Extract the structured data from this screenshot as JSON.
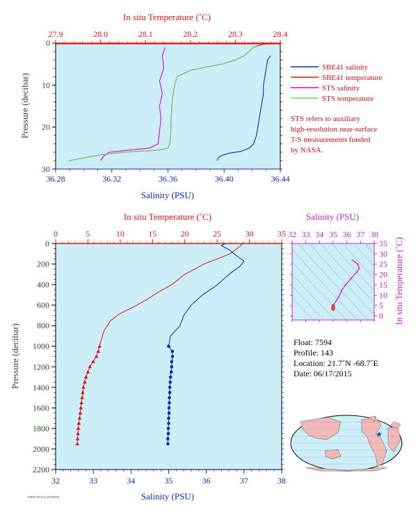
{
  "colors": {
    "salinity": "#0a28b4",
    "temperature": "#e01414",
    "sts_salinity": "#e000e0",
    "sts_temperature": "#6ad06a",
    "plot_bg": "#cceef8",
    "pressure_label": "#2a4a2a",
    "grey_text": "#333333"
  },
  "top_chart": {
    "top_axis_title": "In situ Temperature (˚C)",
    "bottom_axis_title": "Salinity (PSU)",
    "left_axis_title": "Pressure (decibar)",
    "temp_ticks": [
      "27.9",
      "28.0",
      "28.1",
      "28.2",
      "28.3",
      "28.4"
    ],
    "sal_ticks": [
      "36.28",
      "36.32",
      "36.36",
      "36.40",
      "36.44"
    ],
    "pres_ticks": [
      "0",
      "10",
      "20",
      "30"
    ],
    "legend": [
      {
        "label": "SBE41 salinity",
        "color": "#0a28b4"
      },
      {
        "label": "SBE41 temperature",
        "color": "#e01414"
      },
      {
        "label": "STS salinity",
        "color": "#e000e0"
      },
      {
        "label": "STS temperature",
        "color": "#6ad06a"
      }
    ],
    "note": [
      "STS refers to auxiliary",
      "high-resolution near-surface",
      "T-S measurements funded",
      "by NASA."
    ]
  },
  "bottom_chart": {
    "top_axis_title": "In situ Temperature (˚C)",
    "bottom_axis_title": "Salinity (PSU)",
    "left_axis_title": "Pressure (decibar)",
    "temp_ticks": [
      "0",
      "5",
      "10",
      "15",
      "20",
      "25",
      "30",
      "35"
    ],
    "sal_ticks": [
      "32",
      "33",
      "34",
      "35",
      "36",
      "37",
      "38"
    ],
    "pres_ticks": [
      "0",
      "200",
      "400",
      "600",
      "800",
      "1000",
      "1200",
      "1400",
      "1600",
      "1800",
      "2000",
      "2200"
    ]
  },
  "ts_inset": {
    "top_axis_title": "Salinity (PSU)",
    "right_axis_title": "In situ Temperature (˚C)",
    "sal_ticks": [
      "32",
      "33",
      "34",
      "35",
      "36",
      "37",
      "38"
    ],
    "temp_ticks": [
      "0",
      "5",
      "10",
      "15",
      "20",
      "25",
      "30",
      "35"
    ]
  },
  "float_info": {
    "float": "Float:  7594",
    "profile": "Profile:  143",
    "location": "Location:  21.7˚N  -68.7˚E",
    "date": "Date:  06/17/2015"
  },
  "footer_code": "PMEL/NOAA  20150619",
  "chart_data": [
    {
      "type": "line",
      "title": "",
      "xlabel": "Salinity (PSU)",
      "x2label": "In situ Temperature (˚C)",
      "ylabel": "Pressure (decibar)",
      "xlim": [
        36.28,
        36.44
      ],
      "x2lim": [
        27.9,
        28.4
      ],
      "ylim": [
        30,
        0
      ],
      "grid": false,
      "legend_position": "right",
      "series": [
        {
          "name": "SBE41 salinity",
          "axis": "salinity",
          "points": [
            [
              36.433,
              3
            ],
            [
              36.431,
              4
            ],
            [
              36.43,
              6
            ],
            [
              36.429,
              8
            ],
            [
              36.428,
              10
            ],
            [
              36.428,
              12
            ],
            [
              36.427,
              14
            ],
            [
              36.426,
              16
            ],
            [
              36.425,
              18
            ],
            [
              36.424,
              20
            ],
            [
              36.423,
              22
            ],
            [
              36.421,
              24
            ],
            [
              36.418,
              25
            ],
            [
              36.412,
              25.8
            ],
            [
              36.404,
              26.2
            ],
            [
              36.398,
              26.8
            ],
            [
              36.396,
              27.2
            ],
            [
              36.395,
              28
            ]
          ]
        },
        {
          "name": "SBE41 temperature",
          "axis": "temperature",
          "points": [
            [
              28.4,
              0
            ],
            [
              28.36,
              0.3
            ],
            [
              28.34,
              1
            ],
            [
              28.33,
              2
            ],
            [
              28.32,
              3
            ],
            [
              28.3,
              4
            ],
            [
              28.27,
              5
            ],
            [
              28.23,
              5.8
            ],
            [
              28.2,
              6.5
            ],
            [
              28.17,
              8
            ],
            [
              28.165,
              10
            ],
            [
              28.16,
              13
            ],
            [
              28.157,
              18
            ],
            [
              28.156,
              22
            ],
            [
              28.154,
              24
            ],
            [
              28.15,
              25
            ],
            [
              28.13,
              25.5
            ],
            [
              28.05,
              26
            ],
            [
              28.0,
              26.6
            ],
            [
              27.97,
              27.2
            ],
            [
              27.93,
              28
            ]
          ]
        },
        {
          "name": "STS salinity",
          "axis": "salinity",
          "points": [
            [
              36.358,
              1
            ],
            [
              36.356,
              3
            ],
            [
              36.357,
              6
            ],
            [
              36.354,
              9
            ],
            [
              36.356,
              12
            ],
            [
              36.354,
              15
            ],
            [
              36.355,
              18
            ],
            [
              36.354,
              21
            ],
            [
              36.353,
              24
            ],
            [
              36.347,
              25
            ],
            [
              36.332,
              25.5
            ],
            [
              36.318,
              26
            ],
            [
              36.314,
              27
            ],
            [
              36.312,
              28
            ]
          ]
        },
        {
          "name": "STS temperature",
          "axis": "temperature",
          "points": [
            [
              28.35,
              0.5
            ],
            [
              28.34,
              1
            ],
            [
              28.33,
              2
            ],
            [
              28.32,
              3
            ],
            [
              28.3,
              4
            ],
            [
              28.27,
              5
            ],
            [
              28.23,
              5.8
            ],
            [
              28.2,
              6.5
            ],
            [
              28.17,
              8
            ],
            [
              28.165,
              10
            ],
            [
              28.16,
              13
            ],
            [
              28.157,
              18
            ],
            [
              28.156,
              22
            ],
            [
              28.154,
              24
            ],
            [
              28.15,
              25
            ],
            [
              28.13,
              25.5
            ],
            [
              28.05,
              26
            ],
            [
              28.0,
              26.6
            ],
            [
              27.97,
              27.2
            ],
            [
              27.93,
              28
            ]
          ]
        }
      ]
    },
    {
      "type": "line",
      "title": "",
      "xlabel": "Salinity (PSU)",
      "x2label": "In situ Temperature (˚C)",
      "ylabel": "Pressure (decibar)",
      "xlim": [
        32,
        38
      ],
      "x2lim": [
        0,
        35
      ],
      "ylim": [
        2200,
        0
      ],
      "grid": false,
      "series": [
        {
          "name": "",
          "axis": "salinity",
          "points": [
            [
              36.5,
              0
            ],
            [
              36.4,
              20
            ],
            [
              36.6,
              60
            ],
            [
              36.8,
              120
            ],
            [
              37.0,
              170
            ],
            [
              36.9,
              220
            ],
            [
              36.6,
              300
            ],
            [
              36.3,
              400
            ],
            [
              35.9,
              500
            ],
            [
              35.6,
              600
            ],
            [
              35.4,
              700
            ],
            [
              35.3,
              800
            ],
            [
              35.05,
              900
            ],
            [
              35.0,
              1000
            ],
            [
              35.1,
              1050
            ],
            [
              35.1,
              1100
            ],
            [
              35.08,
              1200
            ],
            [
              35.05,
              1300
            ],
            [
              35.03,
              1400
            ],
            [
              35.02,
              1500
            ],
            [
              35.01,
              1600
            ],
            [
              35.0,
              1700
            ],
            [
              34.99,
              1800
            ],
            [
              34.98,
              1900
            ],
            [
              34.98,
              1950
            ]
          ],
          "markers": [
            [
              35.0,
              1000
            ],
            [
              35.1,
              1050
            ],
            [
              35.1,
              1100
            ],
            [
              35.08,
              1150
            ],
            [
              35.08,
              1200
            ],
            [
              35.07,
              1250
            ],
            [
              35.05,
              1300
            ],
            [
              35.04,
              1350
            ],
            [
              35.03,
              1400
            ],
            [
              35.03,
              1450
            ],
            [
              35.02,
              1500
            ],
            [
              35.02,
              1550
            ],
            [
              35.01,
              1600
            ],
            [
              35.01,
              1650
            ],
            [
              35.0,
              1700
            ],
            [
              35.0,
              1750
            ],
            [
              34.99,
              1800
            ],
            [
              34.99,
              1850
            ],
            [
              34.98,
              1900
            ],
            [
              34.98,
              1950
            ]
          ]
        },
        {
          "name": "",
          "axis": "temperature",
          "points": [
            [
              29.0,
              0
            ],
            [
              28.5,
              30
            ],
            [
              27.0,
              100
            ],
            [
              25.0,
              150
            ],
            [
              23.0,
              200
            ],
            [
              20.0,
              300
            ],
            [
              18.0,
              400
            ],
            [
              16.0,
              470
            ],
            [
              14.0,
              550
            ],
            [
              12.0,
              620
            ],
            [
              10.0,
              680
            ],
            [
              8.5,
              750
            ],
            [
              7.5,
              850
            ],
            [
              7.0,
              950
            ],
            [
              6.8,
              1000
            ],
            [
              6.6,
              1050
            ],
            [
              6.3,
              1100
            ],
            [
              5.8,
              1150
            ],
            [
              5.3,
              1200
            ],
            [
              5.0,
              1250
            ],
            [
              4.7,
              1300
            ],
            [
              4.5,
              1350
            ],
            [
              4.3,
              1400
            ],
            [
              4.2,
              1450
            ],
            [
              4.1,
              1500
            ],
            [
              4.0,
              1550
            ],
            [
              3.9,
              1600
            ],
            [
              3.8,
              1650
            ],
            [
              3.7,
              1700
            ],
            [
              3.6,
              1750
            ],
            [
              3.5,
              1800
            ],
            [
              3.45,
              1850
            ],
            [
              3.4,
              1900
            ],
            [
              3.35,
              1950
            ]
          ],
          "markers": [
            [
              6.8,
              1000
            ],
            [
              6.6,
              1050
            ],
            [
              6.3,
              1100
            ],
            [
              5.8,
              1150
            ],
            [
              5.3,
              1200
            ],
            [
              5.0,
              1250
            ],
            [
              4.7,
              1300
            ],
            [
              4.5,
              1350
            ],
            [
              4.3,
              1400
            ],
            [
              4.2,
              1450
            ],
            [
              4.1,
              1500
            ],
            [
              4.0,
              1550
            ],
            [
              3.9,
              1600
            ],
            [
              3.8,
              1650
            ],
            [
              3.7,
              1700
            ],
            [
              3.6,
              1750
            ],
            [
              3.5,
              1800
            ],
            [
              3.45,
              1850
            ],
            [
              3.4,
              1900
            ],
            [
              3.35,
              1950
            ]
          ]
        }
      ]
    },
    {
      "type": "scatter",
      "title": "",
      "xlabel": "Salinity (PSU)",
      "ylabel": "In situ Temperature (˚C)",
      "xlim": [
        32,
        38
      ],
      "ylim": [
        -2,
        35
      ],
      "series": [
        {
          "name": "",
          "points": [
            [
              36.4,
              27
            ],
            [
              36.6,
              26
            ],
            [
              36.8,
              25
            ],
            [
              36.9,
              23
            ],
            [
              36.7,
              21
            ],
            [
              36.3,
              18
            ],
            [
              35.9,
              15
            ],
            [
              35.6,
              12
            ],
            [
              35.4,
              9
            ],
            [
              35.2,
              7
            ],
            [
              35.05,
              5.5
            ],
            [
              35.0,
              4.5
            ],
            [
              35.0,
              4.0
            ],
            [
              34.98,
              3.5
            ]
          ]
        }
      ]
    }
  ]
}
